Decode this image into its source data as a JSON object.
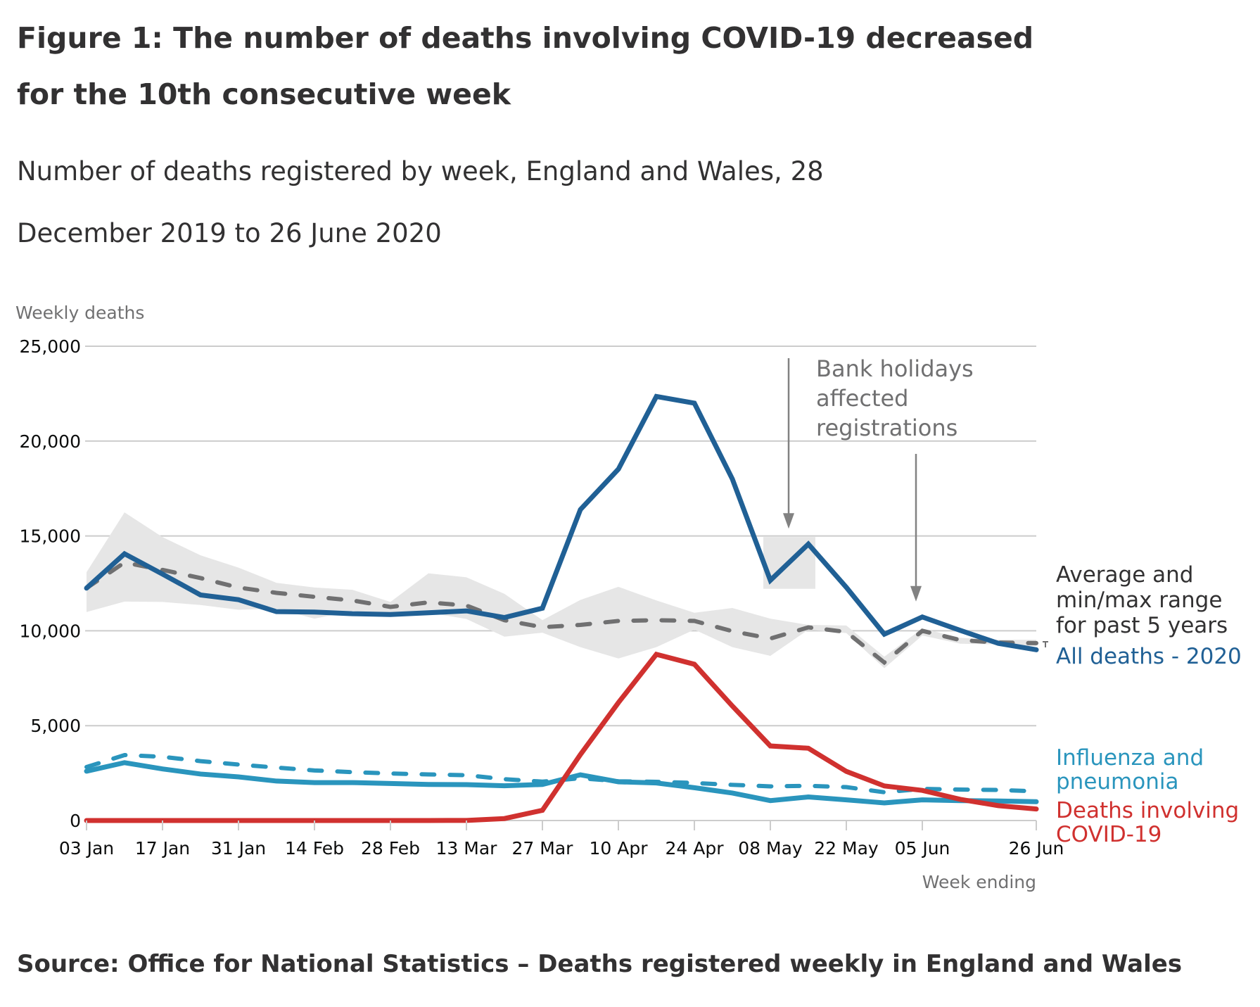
{
  "figure": {
    "title": "Figure 1: The number of deaths involving COVID-19 decreased for the 10th consecutive week",
    "subtitle": "Number of deaths registered by week, England and Wales, 28 December 2019 to 26 June 2020",
    "source": "Source: Office for National Statistics – Deaths registered weekly in England and Wales"
  },
  "colors": {
    "all_deaths": "#206095",
    "average": "#707071",
    "range": "#e6e6e6",
    "influenza": "#2a95bd",
    "covid": "#d0312f",
    "grid": "#cccccc",
    "annotation": "#828282"
  },
  "chart_data": {
    "type": "line",
    "title": "Number of deaths registered by week, England and Wales, 28 December 2019 to 26 June 2020",
    "ylabel": "Weekly deaths",
    "xlabel": "Week ending",
    "ylim": [
      0,
      25000
    ],
    "yticks": [
      0,
      5000,
      10000,
      15000,
      20000,
      25000
    ],
    "ytick_labels": [
      "0",
      "5,000",
      "10,000",
      "15,000",
      "20,000",
      "25,000"
    ],
    "grid": true,
    "x": [
      "03 Jan",
      "10 Jan",
      "17 Jan",
      "24 Jan",
      "31 Jan",
      "07 Feb",
      "14 Feb",
      "21 Feb",
      "28 Feb",
      "06 Mar",
      "13 Mar",
      "20 Mar",
      "27 Mar",
      "03 Apr",
      "10 Apr",
      "17 Apr",
      "24 Apr",
      "01 May",
      "08 May",
      "15 May",
      "22 May",
      "29 May",
      "05 Jun",
      "12 Jun",
      "19 Jun",
      "26 Jun"
    ],
    "xtick_labels": [
      {
        "index": 0,
        "label": "03 Jan"
      },
      {
        "index": 2,
        "label": "17 Jan"
      },
      {
        "index": 4,
        "label": "31 Jan"
      },
      {
        "index": 6,
        "label": "14 Feb"
      },
      {
        "index": 8,
        "label": "28 Feb"
      },
      {
        "index": 10,
        "label": "13 Mar"
      },
      {
        "index": 12,
        "label": "27 Mar"
      },
      {
        "index": 14,
        "label": "10 Apr"
      },
      {
        "index": 16,
        "label": "24 Apr"
      },
      {
        "index": 18,
        "label": "08 May"
      },
      {
        "index": 20,
        "label": "22 May"
      },
      {
        "index": 22,
        "label": "05 Jun"
      },
      {
        "index": 25,
        "label": "26 Jun"
      }
    ],
    "series": [
      {
        "name": "All deaths - 2020",
        "key": "all_deaths",
        "style": "solid",
        "values": [
          12250,
          14060,
          12990,
          11890,
          11640,
          11010,
          10990,
          10900,
          10860,
          10950,
          11050,
          10700,
          11190,
          16390,
          18520,
          22350,
          22000,
          18000,
          12660,
          14570,
          12290,
          9820,
          10730,
          10020,
          9340,
          9000
        ]
      },
      {
        "name": "Average for past 5 years",
        "key": "average",
        "style": "dashed",
        "values": [
          12250,
          13600,
          13210,
          12780,
          12280,
          12000,
          11790,
          11600,
          11260,
          11500,
          11330,
          10560,
          10190,
          10310,
          10520,
          10560,
          10520,
          9980,
          9590,
          10180,
          9940,
          8330,
          10000,
          9510,
          9380,
          9350
        ]
      },
      {
        "name": "Min/max range for past 5 years",
        "key": "range",
        "style": "band",
        "upper": [
          13090,
          16240,
          14940,
          13980,
          13330,
          12530,
          12280,
          12160,
          11520,
          13030,
          12820,
          11950,
          10560,
          11630,
          12320,
          11600,
          10950,
          11200,
          10640,
          10310,
          10280,
          8640,
          10120,
          9630,
          9530,
          9530
        ],
        "lower": [
          10990,
          11540,
          11520,
          11360,
          11110,
          11170,
          10640,
          11050,
          10800,
          10960,
          10620,
          9690,
          9900,
          9140,
          8540,
          9140,
          10060,
          9140,
          8680,
          10060,
          9880,
          8030,
          9750,
          9320,
          9280,
          9200
        ]
      },
      {
        "name": "Influenza and pneumonia",
        "key": "influenza",
        "style": "solid",
        "values": [
          2600,
          3050,
          2720,
          2450,
          2300,
          2080,
          2000,
          2000,
          1950,
          1900,
          1890,
          1830,
          1900,
          2410,
          2040,
          1980,
          1730,
          1450,
          1050,
          1240,
          1090,
          930,
          1090,
          1050,
          1030,
          990
        ]
      },
      {
        "name": "Influenza and pneumonia - 5 year average",
        "key": "influenza",
        "style": "dashed",
        "values": [
          2820,
          3450,
          3360,
          3130,
          2950,
          2790,
          2640,
          2550,
          2480,
          2430,
          2390,
          2180,
          2050,
          2230,
          2070,
          2040,
          1980,
          1880,
          1800,
          1830,
          1760,
          1490,
          1670,
          1630,
          1610,
          1540
        ]
      },
      {
        "name": "Deaths involving COVID-19",
        "key": "covid",
        "style": "solid",
        "values": [
          0,
          0,
          0,
          0,
          0,
          0,
          0,
          0,
          0,
          0,
          5,
          103,
          539,
          3475,
          6213,
          8758,
          8237,
          6035,
          3930,
          3810,
          2589,
          1822,
          1588,
          1114,
          783,
          606
        ]
      }
    ],
    "legend": [
      {
        "text": [
          "Average and",
          "min/max range",
          "for past 5 years"
        ],
        "key": "average",
        "placement": "right"
      },
      {
        "text": [
          "All deaths - 2020"
        ],
        "key": "all_deaths",
        "placement": "right"
      },
      {
        "text": [
          "Influenza and",
          "pneumonia"
        ],
        "key": "influenza",
        "placement": "right"
      },
      {
        "text": [
          "Deaths involving",
          "COVID-19"
        ],
        "key": "covid",
        "placement": "right"
      }
    ],
    "annotations": [
      {
        "text": [
          "Bank holidays",
          "affected",
          "registrations"
        ],
        "arrows_to": [
          "15 May",
          "05 Jun"
        ],
        "highlight_weeks": [
          "08 May",
          "15 May"
        ]
      }
    ]
  }
}
